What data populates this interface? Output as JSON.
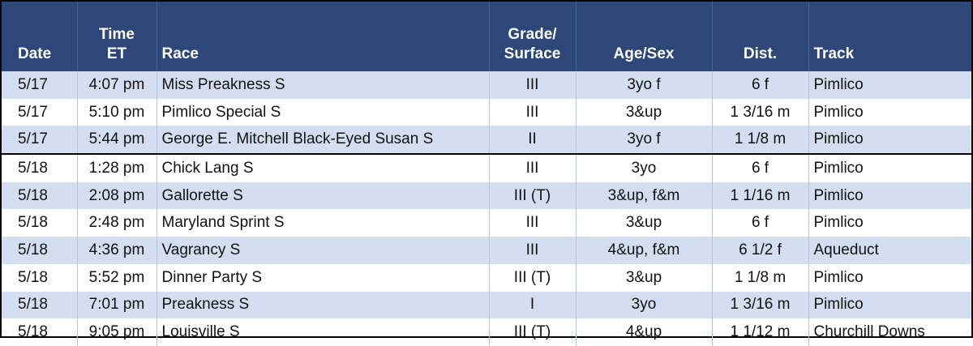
{
  "table": {
    "header": [
      [
        "Date"
      ],
      [
        "Time",
        "ET"
      ],
      [
        "Race"
      ],
      [
        "Grade/",
        "Surface"
      ],
      [
        "Age/Sex"
      ],
      [
        "Dist."
      ],
      [
        "Track"
      ]
    ],
    "rows": [
      [
        "5/17",
        "4:07 pm",
        "Miss Preakness S",
        "III",
        "3yo f",
        "6 f",
        "Pimlico"
      ],
      [
        "5/17",
        "5:10 pm",
        "Pimlico Special S",
        "III",
        "3&up",
        "1 3/16 m",
        "Pimlico"
      ],
      [
        "5/17",
        "5:44 pm",
        "George E. Mitchell Black-Eyed Susan S",
        "II",
        "3yo f",
        "1 1/8 m",
        "Pimlico"
      ],
      [
        "5/18",
        "1:28 pm",
        "Chick Lang S",
        "III",
        "3yo",
        "6 f",
        "Pimlico"
      ],
      [
        "5/18",
        "2:08 pm",
        "Gallorette S",
        "III (T)",
        "3&up, f&m",
        "1 1/16 m",
        "Pimlico"
      ],
      [
        "5/18",
        "2:48 pm",
        "Maryland Sprint S",
        "III",
        "3&up",
        "6 f",
        "Pimlico"
      ],
      [
        "5/18",
        "4:36 pm",
        "Vagrancy S",
        "III",
        "4&up, f&m",
        "6 1/2 f",
        "Aqueduct"
      ],
      [
        "5/18",
        "5:52 pm",
        "Dinner Party S",
        "III (T)",
        "3&up",
        "1 1/8 m",
        "Pimlico"
      ],
      [
        "5/18",
        "7:01 pm",
        "Preakness S",
        "I",
        "3yo",
        "1 3/16 m",
        "Pimlico"
      ],
      [
        "5/18",
        "9:05 pm",
        "Louisville S",
        "III (T)",
        "4&up",
        "1 1/12 m",
        "Churchill Downs"
      ]
    ]
  }
}
